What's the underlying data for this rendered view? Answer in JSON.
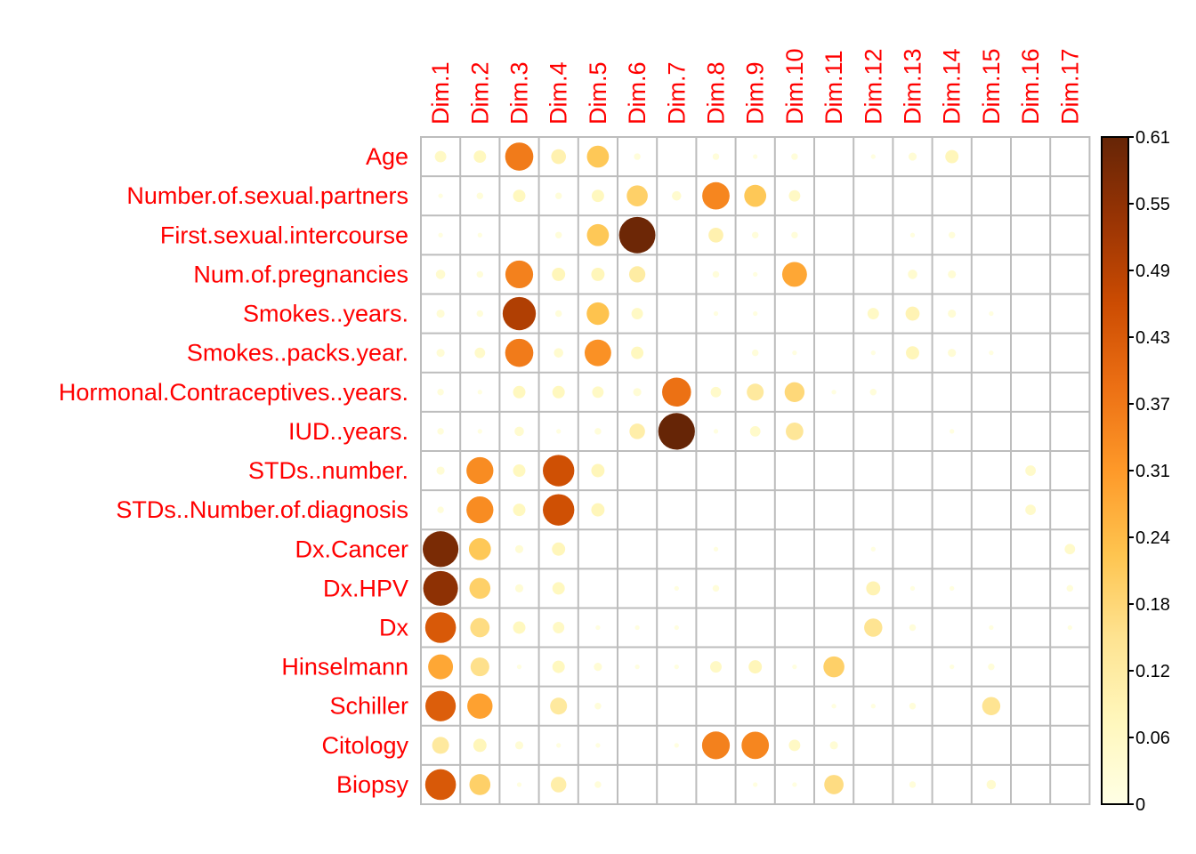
{
  "chart_data": {
    "type": "heatmap",
    "variant": "corrplot-circles",
    "columns": [
      "Dim.1",
      "Dim.2",
      "Dim.3",
      "Dim.4",
      "Dim.5",
      "Dim.6",
      "Dim.7",
      "Dim.8",
      "Dim.9",
      "Dim.10",
      "Dim.11",
      "Dim.12",
      "Dim.13",
      "Dim.14",
      "Dim.15",
      "Dim.16",
      "Dim.17"
    ],
    "rows": [
      "Age",
      "Number.of.sexual.partners",
      "First.sexual.intercourse",
      "Num.of.pregnancies",
      "Smokes..years.",
      "Smokes..packs.year.",
      "Hormonal.Contraceptives..years.",
      "IUD..years.",
      "STDs..number.",
      "STDs..Number.of.diagnosis",
      "Dx.Cancer",
      "Dx.HPV",
      "Dx",
      "Hinselmann",
      "Schiller",
      "Citology",
      "Biopsy"
    ],
    "values": [
      [
        0.06,
        0.07,
        0.36,
        0.1,
        0.22,
        0.02,
        0.0,
        0.02,
        0.01,
        0.02,
        0.0,
        0.01,
        0.03,
        0.08,
        0.0,
        0.0,
        0.0
      ],
      [
        0.01,
        0.02,
        0.07,
        0.02,
        0.07,
        0.2,
        0.04,
        0.34,
        0.22,
        0.06,
        0.0,
        0.0,
        0.0,
        0.0,
        0.0,
        0.0,
        0.0
      ],
      [
        0.01,
        0.01,
        0.0,
        0.02,
        0.22,
        0.6,
        0.0,
        0.1,
        0.02,
        0.02,
        0.0,
        0.0,
        0.01,
        0.02,
        0.0,
        0.0,
        0.0
      ],
      [
        0.04,
        0.02,
        0.35,
        0.08,
        0.08,
        0.12,
        0.0,
        0.02,
        0.01,
        0.28,
        0.0,
        0.0,
        0.04,
        0.03,
        0.0,
        0.0,
        0.0
      ],
      [
        0.03,
        0.02,
        0.5,
        0.02,
        0.23,
        0.06,
        0.0,
        0.01,
        0.01,
        0.0,
        0.0,
        0.06,
        0.09,
        0.03,
        0.01,
        0.0,
        0.0
      ],
      [
        0.03,
        0.05,
        0.36,
        0.04,
        0.32,
        0.07,
        0.0,
        0.0,
        0.02,
        0.01,
        0.0,
        0.01,
        0.08,
        0.03,
        0.01,
        0.0,
        0.0
      ],
      [
        0.02,
        0.01,
        0.07,
        0.07,
        0.06,
        0.03,
        0.38,
        0.05,
        0.13,
        0.18,
        0.01,
        0.02,
        0.0,
        0.0,
        0.0,
        0.0,
        0.0
      ],
      [
        0.02,
        0.01,
        0.04,
        0.01,
        0.02,
        0.11,
        0.61,
        0.01,
        0.05,
        0.14,
        0.0,
        0.0,
        0.0,
        0.01,
        0.0,
        0.0,
        0.0
      ],
      [
        0.03,
        0.33,
        0.07,
        0.45,
        0.08,
        0.0,
        0.0,
        0.0,
        0.0,
        0.0,
        0.0,
        0.0,
        0.0,
        0.0,
        0.0,
        0.05,
        0.0
      ],
      [
        0.02,
        0.33,
        0.07,
        0.45,
        0.08,
        0.0,
        0.0,
        0.0,
        0.0,
        0.0,
        0.0,
        0.0,
        0.0,
        0.0,
        0.0,
        0.05,
        0.0
      ],
      [
        0.58,
        0.22,
        0.03,
        0.08,
        0.0,
        0.0,
        0.0,
        0.01,
        0.0,
        0.0,
        0.0,
        0.01,
        0.0,
        0.0,
        0.0,
        0.0,
        0.05
      ],
      [
        0.55,
        0.2,
        0.03,
        0.07,
        0.0,
        0.0,
        0.01,
        0.02,
        0.0,
        0.0,
        0.0,
        0.09,
        0.01,
        0.01,
        0.0,
        0.0,
        0.02
      ],
      [
        0.43,
        0.17,
        0.07,
        0.06,
        0.01,
        0.01,
        0.01,
        0.0,
        0.0,
        0.0,
        0.0,
        0.15,
        0.02,
        0.0,
        0.01,
        0.0,
        0.01
      ],
      [
        0.28,
        0.16,
        0.01,
        0.07,
        0.03,
        0.01,
        0.01,
        0.06,
        0.08,
        0.01,
        0.2,
        0.0,
        0.0,
        0.01,
        0.02,
        0.0,
        0.0
      ],
      [
        0.42,
        0.29,
        0.0,
        0.13,
        0.02,
        0.0,
        0.0,
        0.0,
        0.0,
        0.0,
        0.01,
        0.01,
        0.02,
        0.0,
        0.15,
        0.0,
        0.0
      ],
      [
        0.13,
        0.08,
        0.03,
        0.01,
        0.01,
        0.0,
        0.01,
        0.35,
        0.34,
        0.06,
        0.03,
        0.0,
        0.0,
        0.0,
        0.0,
        0.0,
        0.0
      ],
      [
        0.43,
        0.2,
        0.01,
        0.11,
        0.02,
        0.0,
        0.0,
        0.0,
        0.01,
        0.01,
        0.17,
        0.0,
        0.02,
        0.0,
        0.04,
        0.0,
        0.0
      ]
    ],
    "colorbar": {
      "min": 0,
      "max": 0.61,
      "ticks": [
        "0",
        "0.06",
        "0.12",
        "0.18",
        "0.24",
        "0.31",
        "0.37",
        "0.43",
        "0.49",
        "0.55",
        "0.61"
      ],
      "colors": [
        "#FFFFE5",
        "#FFF7BC",
        "#FEE391",
        "#FEC44F",
        "#FE9929",
        "#EC7014",
        "#CC4C02",
        "#993404",
        "#662506"
      ]
    },
    "label_color": "#FF0000",
    "grid": true,
    "legend_position": "right"
  }
}
